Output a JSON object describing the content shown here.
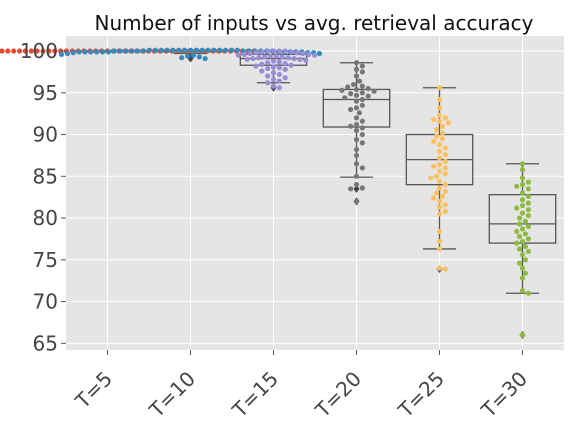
{
  "chart_data": {
    "type": "box+swarm",
    "title": "Number of inputs vs avg. retrieval accuracy",
    "xlabel": "",
    "ylabel": "",
    "ylim": [
      64.2,
      101.8
    ],
    "yticks": [
      65,
      70,
      75,
      80,
      85,
      90,
      95,
      100
    ],
    "grid": true,
    "categories": [
      "T=5",
      "T=10",
      "T=15",
      "T=20",
      "T=25",
      "T=30"
    ],
    "colors": [
      "#E24A33",
      "#348ABD",
      "#988ED5",
      "#777777",
      "#FBC15E",
      "#8EBA42"
    ],
    "boxes": [
      {
        "q1": 100.0,
        "median": 100.0,
        "q3": 100.0,
        "whislo": 100.0,
        "whishi": 100.0,
        "fliers": []
      },
      {
        "q1": 99.9,
        "median": 100.0,
        "q3": 100.1,
        "whislo": 99.7,
        "whishi": 100.1,
        "fliers": [
          99.3,
          99.1
        ]
      },
      {
        "q1": 98.3,
        "median": 99.1,
        "q3": 99.6,
        "whislo": 96.2,
        "whishi": 100.0,
        "fliers": [
          95.6
        ]
      },
      {
        "q1": 90.9,
        "median": 94.2,
        "q3": 95.4,
        "whislo": 84.9,
        "whishi": 98.6,
        "fliers": [
          83.5,
          82.0
        ]
      },
      {
        "q1": 84.0,
        "median": 87.0,
        "q3": 90.0,
        "whislo": 76.3,
        "whishi": 95.6,
        "fliers": [
          73.9
        ]
      },
      {
        "q1": 77.0,
        "median": 79.3,
        "q3": 82.8,
        "whislo": 71.0,
        "whishi": 86.5,
        "fliers": [
          66.0
        ]
      }
    ],
    "points": [
      [
        100,
        100,
        100,
        100,
        100,
        100,
        100,
        100,
        100,
        100,
        100,
        100,
        100,
        100,
        100,
        100,
        100,
        100,
        100,
        100,
        100,
        100,
        100,
        100,
        100,
        100,
        100,
        100,
        100,
        100,
        100,
        100,
        100,
        100,
        100,
        100,
        100,
        100,
        100,
        100,
        100,
        100,
        100,
        100,
        100,
        100,
        100,
        100,
        100,
        100
      ],
      [
        100.1,
        100.1,
        100.1,
        100.1,
        100.1,
        100.1,
        100.1,
        100.1,
        100.1,
        100.1,
        100.1,
        100.1,
        100.1,
        100.1,
        100.1,
        100.1,
        100,
        100,
        100,
        100,
        100,
        100,
        100,
        100,
        100,
        100,
        100,
        100,
        99.9,
        99.9,
        99.9,
        99.9,
        99.9,
        99.9,
        99.9,
        99.9,
        99.9,
        99.9,
        99.9,
        99.8,
        99.8,
        99.8,
        99.7,
        99.7,
        99.6,
        99.5,
        99.4,
        99.3,
        99.2,
        99.1
      ],
      [
        100,
        100,
        100,
        100,
        99.9,
        99.9,
        99.8,
        99.8,
        99.7,
        99.7,
        99.6,
        99.6,
        99.5,
        99.5,
        99.4,
        99.4,
        99.3,
        99.3,
        99.2,
        99.2,
        99.1,
        99.1,
        99.0,
        99.0,
        98.9,
        98.8,
        98.7,
        98.6,
        98.5,
        98.4,
        98.3,
        98.2,
        98.1,
        98.0,
        97.9,
        97.8,
        97.6,
        97.4,
        97.2,
        97.0,
        96.8,
        96.6,
        96.4,
        96.2,
        95.8,
        95.6
      ],
      [
        98.6,
        98.2,
        97.8,
        97.5,
        97.0,
        96.4,
        96.0,
        95.8,
        95.7,
        95.5,
        95.4,
        95.3,
        95.2,
        95.0,
        94.9,
        94.7,
        94.6,
        94.4,
        94.2,
        94.0,
        93.5,
        93.2,
        93.0,
        92.6,
        92.0,
        91.6,
        91.2,
        91.0,
        90.8,
        90.5,
        90.0,
        89.4,
        89.0,
        88.2,
        87.5,
        86.5,
        86.0,
        85.0,
        84.0,
        83.6,
        83.5,
        82.0
      ],
      [
        95.6,
        94.2,
        93.2,
        92.3,
        92.0,
        91.8,
        91.6,
        91.4,
        91.0,
        90.6,
        90.2,
        89.8,
        89.5,
        89.2,
        88.8,
        88.4,
        88.0,
        87.6,
        87.2,
        86.8,
        86.4,
        86.2,
        86.0,
        85.6,
        85.3,
        85.0,
        84.8,
        84.4,
        84.0,
        83.6,
        83.2,
        83.0,
        82.6,
        82.4,
        82.0,
        81.6,
        81.3,
        80.8,
        80.5,
        78.4,
        77.2,
        76.3,
        74.0,
        73.9
      ],
      [
        86.5,
        85.8,
        84.8,
        84.3,
        84.0,
        83.8,
        83.5,
        83.0,
        82.6,
        82.2,
        81.8,
        81.5,
        81.2,
        81.0,
        80.6,
        80.3,
        80.0,
        79.6,
        79.3,
        79.0,
        78.7,
        78.4,
        78.1,
        77.8,
        77.5,
        77.2,
        77.0,
        76.6,
        76.3,
        76.0,
        75.6,
        75.0,
        74.6,
        74.0,
        73.4,
        72.8,
        71.3,
        71.0,
        66.0
      ]
    ]
  }
}
